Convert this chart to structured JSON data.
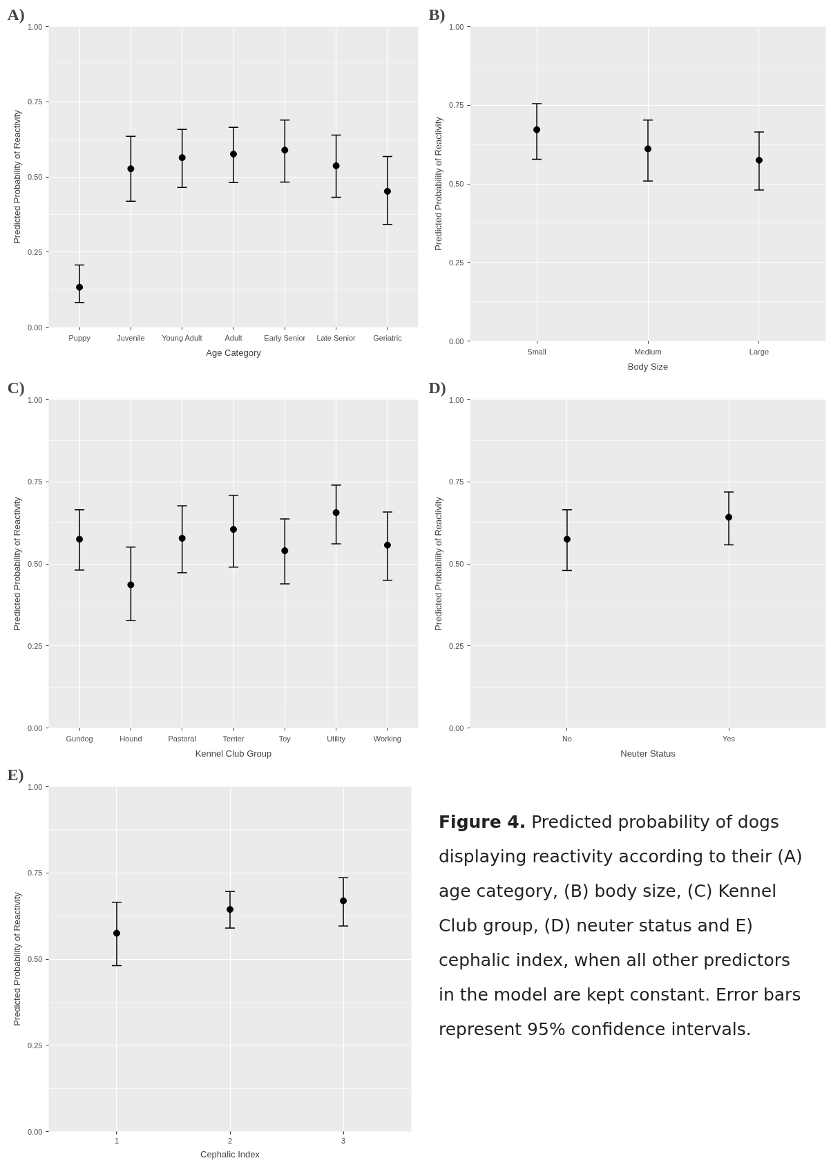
{
  "chart_data": [
    {
      "type": "scatter",
      "title": "A)",
      "xlabel": "Age Category",
      "ylabel": "Predicted Probability of Reactivity",
      "categories": [
        "Puppy",
        "Juvenile",
        "Young Adult",
        "Adult",
        "Early Senior",
        "Late Senior",
        "Geriatric"
      ],
      "series": [
        {
          "color": "#000000",
          "values": [
            0.133,
            0.527,
            0.564,
            0.576,
            0.589,
            0.537,
            0.452
          ],
          "errors": [
            [
              0.082,
              0.207
            ],
            [
              0.419,
              0.635
            ],
            [
              0.465,
              0.658
            ],
            [
              0.481,
              0.665
            ],
            [
              0.483,
              0.689
            ],
            [
              0.432,
              0.639
            ],
            [
              0.342,
              0.568
            ]
          ]
        }
      ],
      "ylim": [
        0,
        1
      ],
      "yticks": [
        {
          "value": 0,
          "label": "0.00"
        },
        {
          "value": 0.25,
          "label": "0.25"
        },
        {
          "value": 0.5,
          "label": "0.50"
        },
        {
          "value": 0.75,
          "label": "0.75"
        },
        {
          "value": 1,
          "label": "1.00"
        }
      ],
      "grid": true,
      "marker": "circle"
    },
    {
      "type": "scatter",
      "title": "B)",
      "xlabel": "Body Size",
      "ylabel": "Predicted Probability of Reactivity",
      "categories": [
        "Small",
        "Medium",
        "Large"
      ],
      "series": [
        {
          "color": "#000000",
          "values": [
            0.672,
            0.611,
            0.575
          ],
          "errors": [
            [
              0.578,
              0.755
            ],
            [
              0.509,
              0.703
            ],
            [
              0.48,
              0.665
            ]
          ]
        }
      ],
      "ylim": [
        0,
        1
      ],
      "yticks": [
        {
          "value": 0,
          "label": "0.00"
        },
        {
          "value": 0.25,
          "label": "0.25"
        },
        {
          "value": 0.5,
          "label": "0.50"
        },
        {
          "value": 0.75,
          "label": "0.75"
        },
        {
          "value": 1,
          "label": "1.00"
        }
      ],
      "grid": true,
      "marker": "circle"
    },
    {
      "type": "scatter",
      "title": "C)",
      "xlabel": "Kennel Club Group",
      "ylabel": "Predicted Probability of Reactivity",
      "categories": [
        "Gundog",
        "Hound",
        "Pastoral",
        "Terrier",
        "Toy",
        "Utility",
        "Working"
      ],
      "series": [
        {
          "color": "#000000",
          "values": [
            0.575,
            0.436,
            0.578,
            0.605,
            0.54,
            0.656,
            0.557
          ],
          "errors": [
            [
              0.481,
              0.665
            ],
            [
              0.327,
              0.551
            ],
            [
              0.473,
              0.677
            ],
            [
              0.49,
              0.709
            ],
            [
              0.439,
              0.637
            ],
            [
              0.561,
              0.74
            ],
            [
              0.45,
              0.658
            ]
          ]
        }
      ],
      "ylim": [
        0,
        1
      ],
      "yticks": [
        {
          "value": 0,
          "label": "0.00"
        },
        {
          "value": 0.25,
          "label": "0.25"
        },
        {
          "value": 0.5,
          "label": "0.50"
        },
        {
          "value": 0.75,
          "label": "0.75"
        },
        {
          "value": 1,
          "label": "1.00"
        }
      ],
      "grid": true,
      "marker": "circle"
    },
    {
      "type": "scatter",
      "title": "D)",
      "xlabel": "Neuter Status",
      "ylabel": "Predicted Probability of Reactivity",
      "categories": [
        "No",
        "Yes"
      ],
      "series": [
        {
          "color": "#000000",
          "values": [
            0.575,
            0.642
          ],
          "errors": [
            [
              0.48,
              0.665
            ],
            [
              0.558,
              0.719
            ]
          ]
        }
      ],
      "ylim": [
        0,
        1
      ],
      "yticks": [
        {
          "value": 0,
          "label": "0.00"
        },
        {
          "value": 0.25,
          "label": "0.25"
        },
        {
          "value": 0.5,
          "label": "0.50"
        },
        {
          "value": 0.75,
          "label": "0.75"
        },
        {
          "value": 1,
          "label": "1.00"
        }
      ],
      "grid": true,
      "marker": "circle"
    },
    {
      "type": "scatter",
      "title": "E)",
      "xlabel": "Cephalic Index",
      "ylabel": "Predicted Probability of Reactivity",
      "x": [
        1,
        2,
        3
      ],
      "series": [
        {
          "color": "#000000",
          "values": [
            0.575,
            0.644,
            0.669
          ],
          "errors": [
            [
              0.481,
              0.665
            ],
            [
              0.59,
              0.696
            ],
            [
              0.596,
              0.736
            ]
          ]
        }
      ],
      "xlim": [
        0.4,
        3.6
      ],
      "xticks": [
        1,
        2,
        3
      ],
      "ylim": [
        0,
        1
      ],
      "yticks": [
        {
          "value": 0,
          "label": "0.00"
        },
        {
          "value": 0.25,
          "label": "0.25"
        },
        {
          "value": 0.5,
          "label": "0.50"
        },
        {
          "value": 0.75,
          "label": "0.75"
        },
        {
          "value": 1,
          "label": "1.00"
        }
      ],
      "grid": true,
      "marker": "circle"
    },
    {
      "type": "other",
      "title": "Figure 4.",
      "annotations": [
        "Predicted probability of dogs displaying reactivity according to their (A) age category, (B) body size, (C) Kennel Club group, (D) neuter status and E) cephalic index, when all other predictors in the model are kept constant. Error bars represent 95% confidence intervals."
      ]
    }
  ]
}
